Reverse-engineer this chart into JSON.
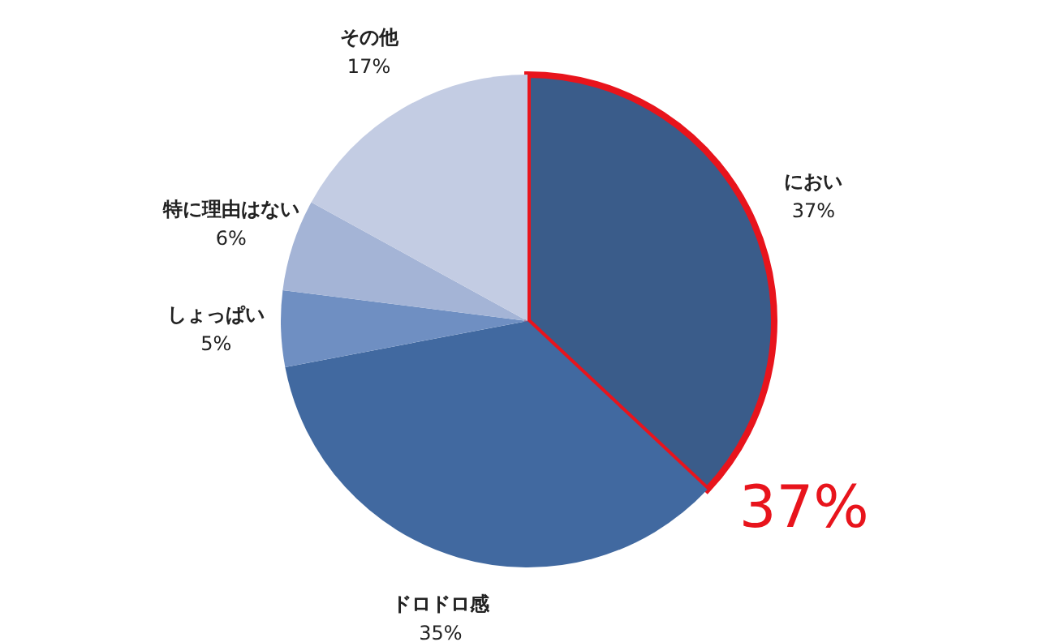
{
  "chart_data": {
    "type": "pie",
    "categories": [
      "におい",
      "ドロドロ感",
      "しょっぱい",
      "特に理由はない",
      "その他"
    ],
    "values": [
      37,
      35,
      5,
      6,
      17
    ],
    "colors": [
      "#3a5c8a",
      "#4169a0",
      "#6f8fc2",
      "#a4b4d6",
      "#c3cce3"
    ],
    "value_labels": [
      "37%",
      "35%",
      "5%",
      "6%",
      "17%"
    ],
    "annotations": [
      {
        "text": "37%",
        "x": "におい"
      }
    ],
    "legend": false
  }
}
